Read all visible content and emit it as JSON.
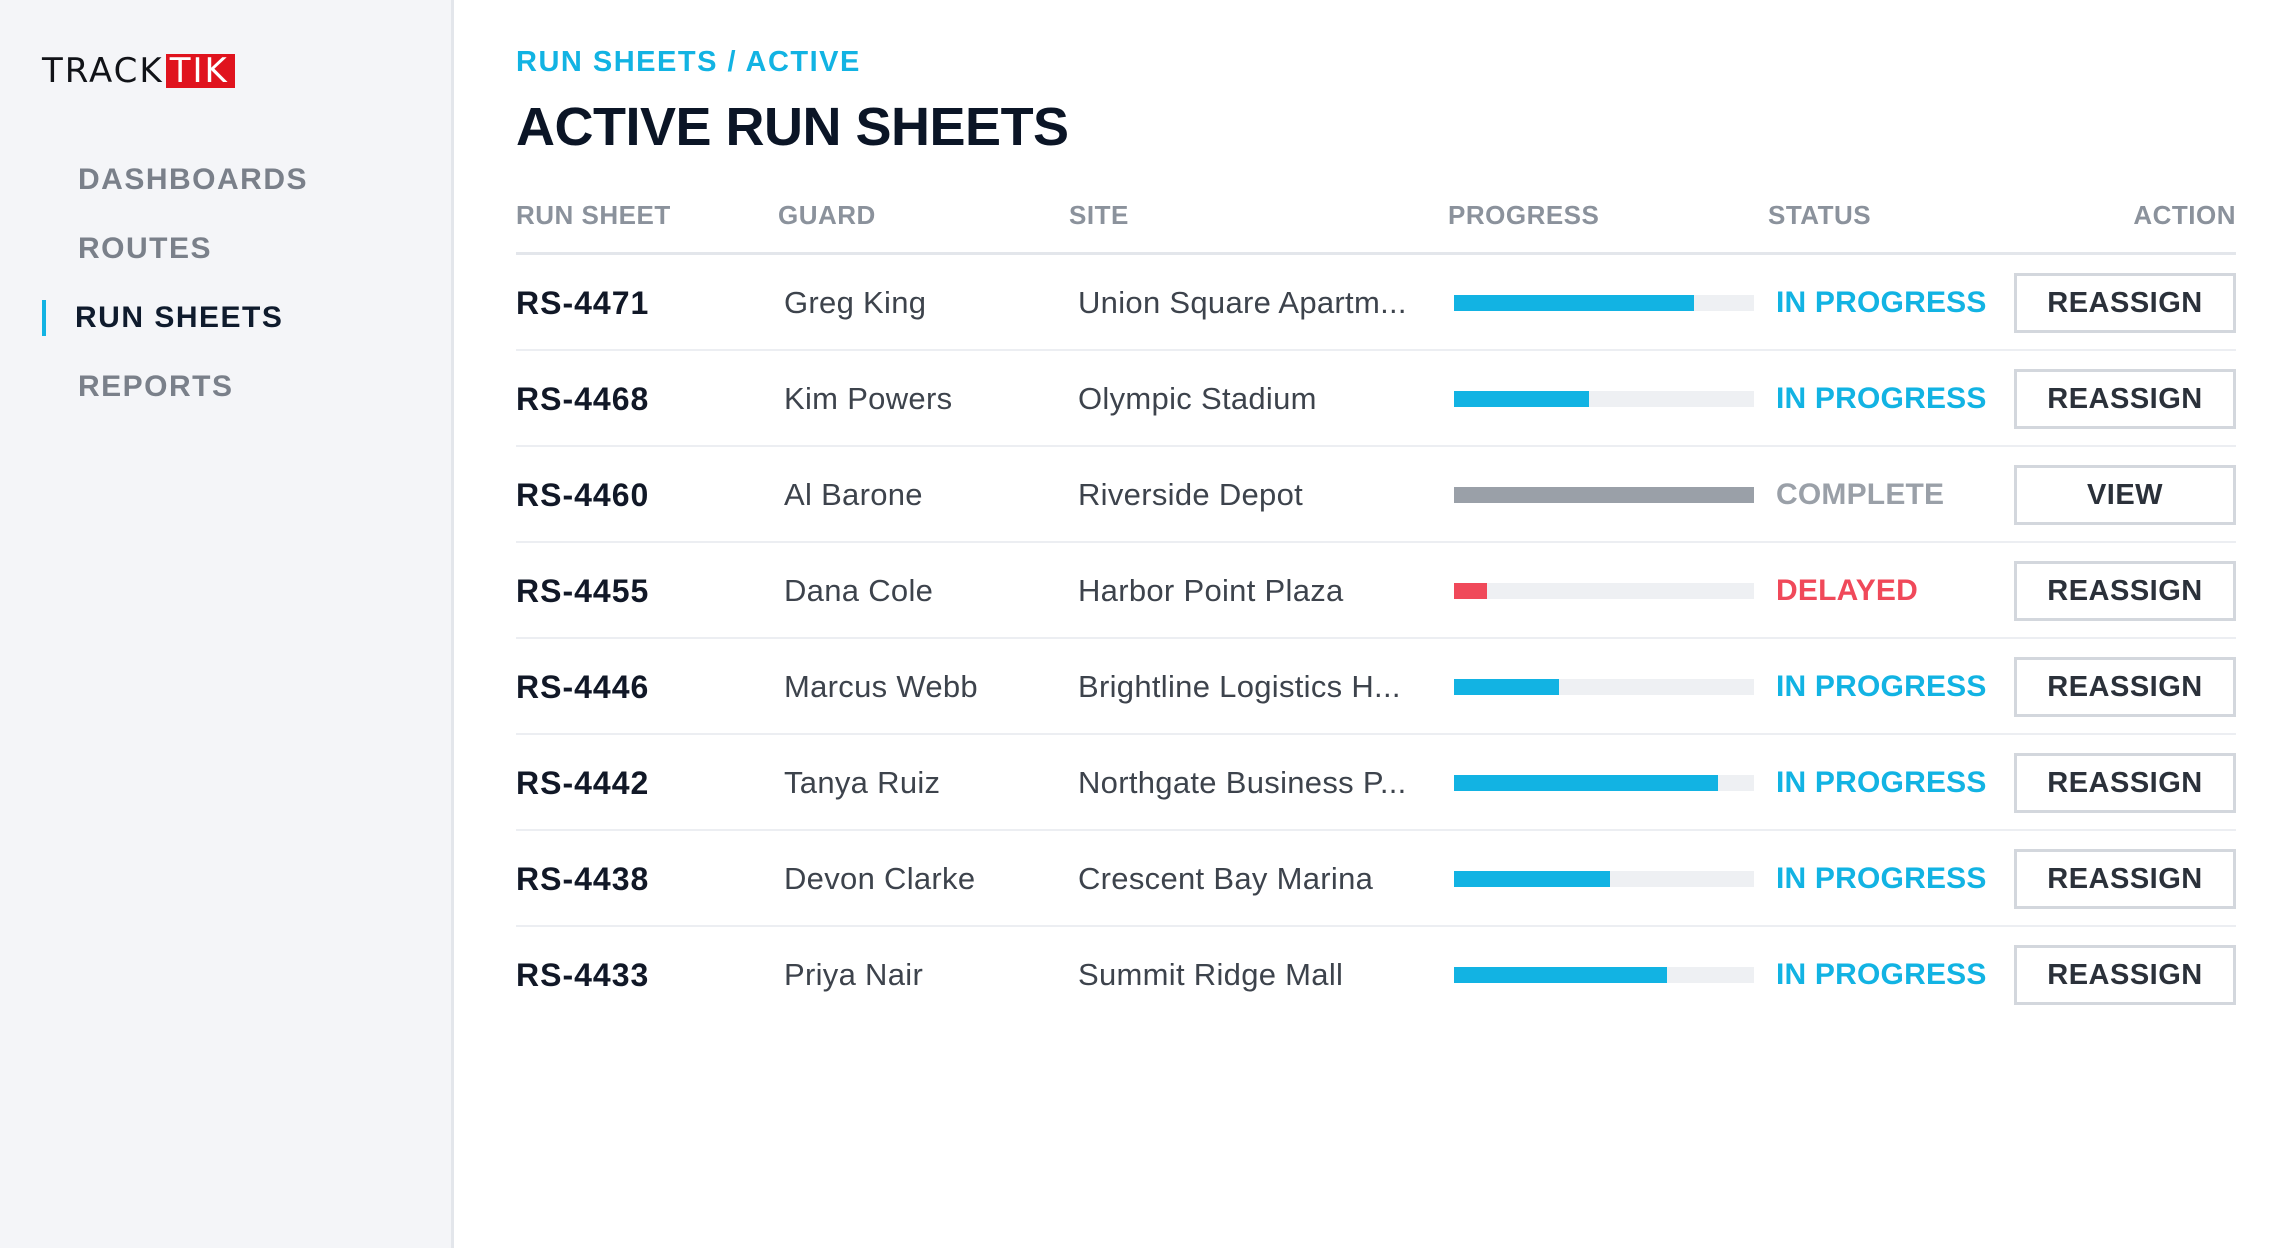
{
  "brand": {
    "logo_part1": "TRACK",
    "logo_part2": "TIK",
    "logo_accent_color": "#e0131e"
  },
  "sidebar": {
    "active_indicator_color": "#12b3e3",
    "items": [
      {
        "label": "DASHBOARDS",
        "active": false
      },
      {
        "label": "ROUTES",
        "active": false
      },
      {
        "label": "RUN SHEETS",
        "active": true
      },
      {
        "label": "REPORTS",
        "active": false
      }
    ]
  },
  "header": {
    "breadcrumb": "RUN SHEETS / ACTIVE",
    "title": "ACTIVE RUN SHEETS"
  },
  "colors": {
    "accent": "#12b3e3",
    "in_progress": "#12b3e3",
    "complete": "#9aa0a8",
    "delayed": "#f0495a"
  },
  "table": {
    "columns": [
      "RUN SHEET",
      "GUARD",
      "SITE",
      "PROGRESS",
      "STATUS",
      "ACTION"
    ],
    "rows": [
      {
        "run_sheet": "RS-4471",
        "guard": "Greg King",
        "site": "Union Square Apartm...",
        "progress": 0.8,
        "status": "IN PROGRESS",
        "status_key": "in_progress",
        "action": "REASSIGN"
      },
      {
        "run_sheet": "RS-4468",
        "guard": "Kim Powers",
        "site": "Olympic Stadium",
        "progress": 0.45,
        "status": "IN PROGRESS",
        "status_key": "in_progress",
        "action": "REASSIGN"
      },
      {
        "run_sheet": "RS-4460",
        "guard": "Al Barone",
        "site": "Riverside Depot",
        "progress": 1.0,
        "status": "COMPLETE",
        "status_key": "complete",
        "action": "VIEW"
      },
      {
        "run_sheet": "RS-4455",
        "guard": "Dana Cole",
        "site": "Harbor Point Plaza",
        "progress": 0.11,
        "status": "DELAYED",
        "status_key": "delayed",
        "action": "REASSIGN"
      },
      {
        "run_sheet": "RS-4446",
        "guard": "Marcus Webb",
        "site": "Brightline Logistics H...",
        "progress": 0.35,
        "status": "IN PROGRESS",
        "status_key": "in_progress",
        "action": "REASSIGN"
      },
      {
        "run_sheet": "RS-4442",
        "guard": "Tanya Ruiz",
        "site": "Northgate Business P...",
        "progress": 0.88,
        "status": "IN PROGRESS",
        "status_key": "in_progress",
        "action": "REASSIGN"
      },
      {
        "run_sheet": "RS-4438",
        "guard": "Devon Clarke",
        "site": "Crescent Bay Marina",
        "progress": 0.52,
        "status": "IN PROGRESS",
        "status_key": "in_progress",
        "action": "REASSIGN"
      },
      {
        "run_sheet": "RS-4433",
        "guard": "Priya Nair",
        "site": "Summit Ridge Mall",
        "progress": 0.71,
        "status": "IN PROGRESS",
        "status_key": "in_progress",
        "action": "REASSIGN"
      }
    ]
  }
}
